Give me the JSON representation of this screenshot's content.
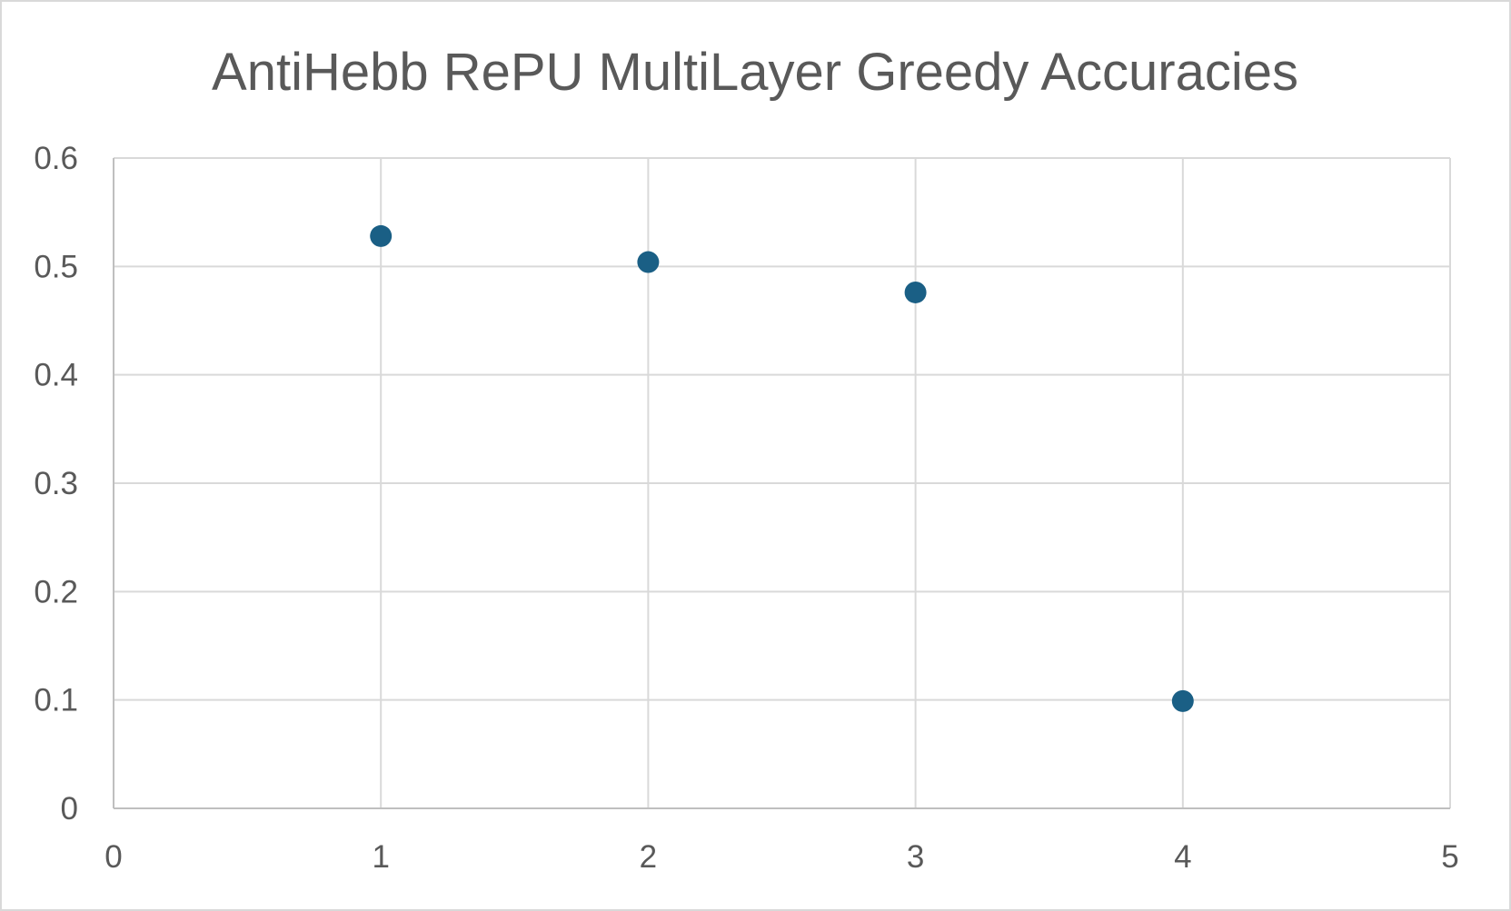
{
  "chart_data": {
    "type": "scatter",
    "title": "AntiHebb RePU MultiLayer Greedy Accuracies",
    "xlabel": "",
    "ylabel": "",
    "xlim": [
      0,
      5
    ],
    "ylim": [
      0,
      0.6
    ],
    "xticks": [
      0,
      1,
      2,
      3,
      4,
      5
    ],
    "yticks": [
      0,
      0.1,
      0.2,
      0.3,
      0.4,
      0.5,
      0.6
    ],
    "x_tick_labels": [
      "0",
      "1",
      "2",
      "3",
      "4",
      "5"
    ],
    "y_tick_labels": [
      "0",
      "0.1",
      "0.2",
      "0.3",
      "0.4",
      "0.5",
      "0.6"
    ],
    "grid": true,
    "legend": "none",
    "series": [
      {
        "color": "#1a5f85",
        "points": [
          {
            "x": 1,
            "y": 0.528
          },
          {
            "x": 2,
            "y": 0.504
          },
          {
            "x": 3,
            "y": 0.476
          },
          {
            "x": 4,
            "y": 0.099
          }
        ]
      }
    ]
  }
}
